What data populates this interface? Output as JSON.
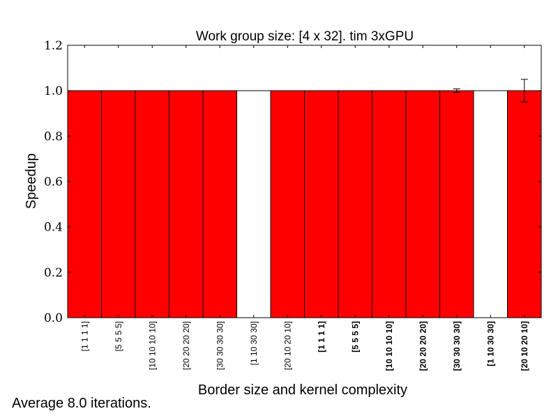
{
  "chart_data": {
    "type": "bar",
    "title": "Work group size: [4 x 32]. tim 3xGPU",
    "xlabel": "Border size and kernel complexity",
    "ylabel": "Speedup",
    "ylim": [
      0,
      1.2
    ],
    "yticks": [
      "0.0",
      "0.2",
      "0.4",
      "0.6",
      "0.8",
      "1.0",
      "1.2"
    ],
    "grid": false,
    "categories": [
      "[1 1 1 1]",
      "[5 5 5 5]",
      "[10 10 10 10]",
      "[20 20 20 20]",
      "[30 30 30 30]",
      "[1 10 30 30]",
      "[20 10 20 10]",
      "[1 1 1 1]",
      "[5 5 5 5]",
      "[10 10 10 10]",
      "[20 20 20 20]",
      "[30 30 30 30]",
      "[1 10 30 30]",
      "[20 10 20 10]"
    ],
    "category_bold": [
      false,
      false,
      false,
      false,
      false,
      false,
      false,
      true,
      true,
      true,
      true,
      true,
      true,
      true
    ],
    "values": [
      1.0,
      1.0,
      1.0,
      1.0,
      1.0,
      1.0,
      1.0,
      1.0,
      1.0,
      1.0,
      1.0,
      1.0,
      1.0,
      1.0
    ],
    "errors": [
      0,
      0,
      0,
      0,
      0,
      0,
      0,
      0,
      0,
      0,
      0,
      0.008,
      0,
      0.05
    ],
    "bar_colors": [
      "#ff0000",
      "#ff0000",
      "#ff0000",
      "#ff0000",
      "#ff0000",
      "#ffffff",
      "#ff0000",
      "#ff0000",
      "#ff0000",
      "#ff0000",
      "#ff0000",
      "#ff0000",
      "#ffffff",
      "#ff0000"
    ]
  },
  "footer": {
    "note": "Average 8.0 iterations."
  }
}
